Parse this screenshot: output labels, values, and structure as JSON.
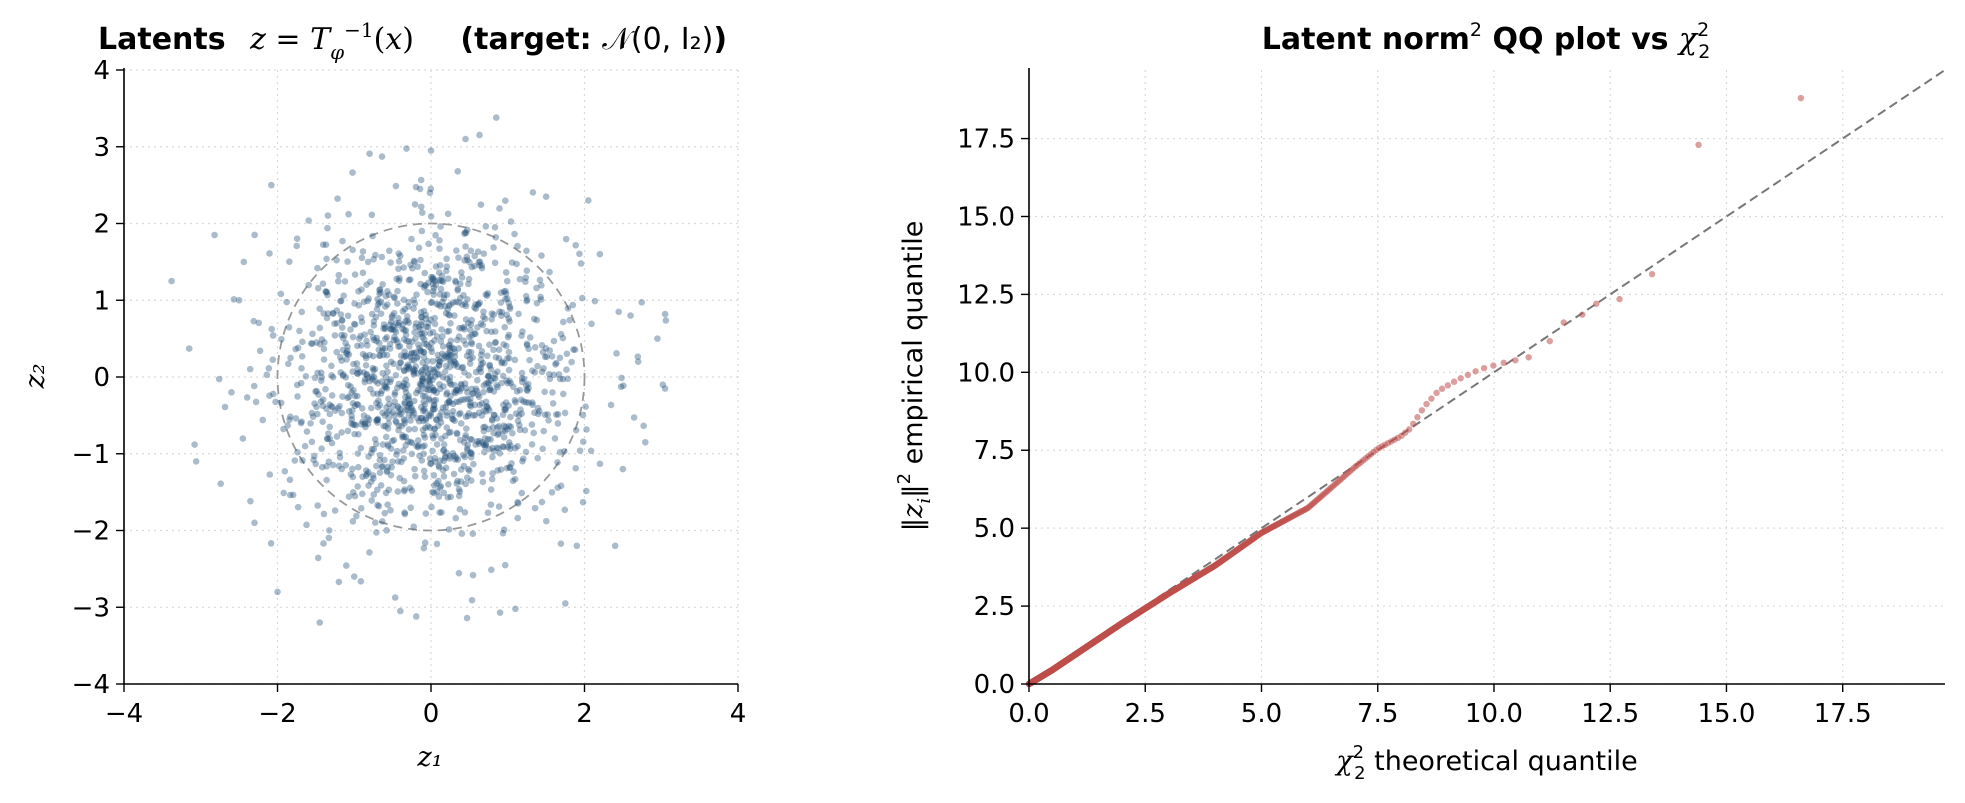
{
  "chart_data": [
    {
      "type": "scatter",
      "title": {
        "lead": "Latents",
        "formula": "z = T_φ^{−1}(x)",
        "target_prefix": "(target: ",
        "target_formula": "𝒩(0, I₂)",
        "target_suffix": ")"
      },
      "xlabel": "z₁",
      "ylabel": "z₂",
      "xlim": [
        -4,
        4
      ],
      "ylim": [
        -4,
        4
      ],
      "xticks": [
        -4,
        -2,
        0,
        2,
        4
      ],
      "yticks": [
        -4,
        -3,
        -2,
        -1,
        0,
        1,
        2,
        3,
        4
      ],
      "xtick_labels": [
        "−4",
        "−2",
        "0",
        "2",
        "4"
      ],
      "ytick_labels": [
        "−4",
        "−3",
        "−2",
        "−1",
        "0",
        "1",
        "2",
        "3",
        "4"
      ],
      "grid": true,
      "reference_circle": {
        "radius": 2,
        "style": "dashed",
        "color": "#999999"
      },
      "series": [
        {
          "color": "#1f4e79",
          "n_points": 1500,
          "distribution": "standard bivariate normal N(0, I2)",
          "highlighted_points": [
            [
              -3.38,
              1.25
            ],
            [
              -3.15,
              0.37
            ],
            [
              -3.08,
              -0.88
            ],
            [
              -3.06,
              -1.1
            ],
            [
              -2.82,
              1.85
            ],
            [
              -2.74,
              -1.39
            ],
            [
              -2.08,
              2.5
            ],
            [
              -2.0,
              -2.8
            ],
            [
              -1.45,
              -3.2
            ],
            [
              -1.2,
              -2.67
            ],
            [
              -0.8,
              2.91
            ],
            [
              -0.4,
              -3.05
            ],
            [
              0.0,
              2.95
            ],
            [
              0.45,
              3.1
            ],
            [
              0.47,
              -3.14
            ],
            [
              0.85,
              3.38
            ],
            [
              0.9,
              -3.07
            ],
            [
              1.1,
              -3.02
            ],
            [
              1.5,
              2.35
            ],
            [
              1.75,
              -2.95
            ],
            [
              2.4,
              -2.2
            ],
            [
              2.05,
              2.3
            ],
            [
              2.6,
              0.8
            ],
            [
              2.95,
              0.5
            ],
            [
              3.05,
              0.82
            ],
            [
              3.02,
              -0.1
            ],
            [
              3.05,
              -0.15
            ],
            [
              2.5,
              -1.2
            ],
            [
              2.7,
              0.2
            ],
            [
              -2.5,
              1.0
            ],
            [
              -2.6,
              -0.2
            ],
            [
              -2.3,
              -1.9
            ],
            [
              1.9,
              -2.2
            ],
            [
              -1.0,
              -2.6
            ],
            [
              2.2,
              1.6
            ]
          ]
        }
      ]
    },
    {
      "type": "scatter",
      "title": {
        "lead": "Latent norm",
        "sup": "2",
        "mid": " QQ plot vs ",
        "chi": "χ",
        "chi_sup": "2",
        "chi_sub": "2"
      },
      "xlabel": {
        "chi": "χ",
        "sup": "2",
        "sub": "2",
        "text": " theoretical quantile"
      },
      "ylabel": {
        "open": "‖",
        "var": "z",
        "sub": "i",
        "close": "‖",
        "sup": "2",
        "text": " empirical quantile"
      },
      "xlim": [
        0,
        19.7
      ],
      "ylim": [
        0,
        19.7
      ],
      "xticks": [
        0,
        2.5,
        5,
        7.5,
        10,
        12.5,
        15,
        17.5
      ],
      "yticks": [
        0,
        2.5,
        5,
        7.5,
        10,
        12.5,
        15,
        17.5
      ],
      "xtick_labels": [
        "0.0",
        "2.5",
        "5.0",
        "7.5",
        "10.0",
        "12.5",
        "15.0",
        "17.5"
      ],
      "ytick_labels": [
        "0.0",
        "2.5",
        "5.0",
        "7.5",
        "10.0",
        "12.5",
        "15.0",
        "17.5"
      ],
      "grid": true,
      "reference_line": {
        "x": [
          0,
          19.7
        ],
        "y": [
          0,
          19.7
        ],
        "style": "dashed",
        "color": "#777777"
      },
      "series": [
        {
          "color": "#c0504d",
          "curve_points": [
            [
              0.0,
              0.0
            ],
            [
              0.5,
              0.45
            ],
            [
              1.0,
              0.95
            ],
            [
              2.0,
              1.95
            ],
            [
              3.0,
              2.9
            ],
            [
              4.0,
              3.8
            ],
            [
              5.0,
              4.85
            ],
            [
              6.0,
              5.65
            ],
            [
              6.5,
              6.3
            ],
            [
              7.0,
              6.95
            ],
            [
              7.5,
              7.55
            ],
            [
              8.0,
              7.95
            ],
            [
              8.2,
              8.2
            ],
            [
              8.5,
              8.9
            ],
            [
              8.8,
              9.4
            ],
            [
              9.2,
              9.75
            ],
            [
              9.7,
              10.1
            ],
            [
              10.2,
              10.3
            ],
            [
              10.8,
              10.5
            ],
            [
              11.0,
              10.7
            ]
          ],
          "tail_points": [
            [
              11.2,
              11.0
            ],
            [
              11.5,
              11.6
            ],
            [
              11.9,
              11.85
            ],
            [
              12.2,
              12.2
            ],
            [
              12.7,
              12.35
            ],
            [
              13.4,
              13.15
            ],
            [
              14.4,
              17.3
            ],
            [
              16.6,
              18.8
            ]
          ]
        }
      ]
    }
  ]
}
